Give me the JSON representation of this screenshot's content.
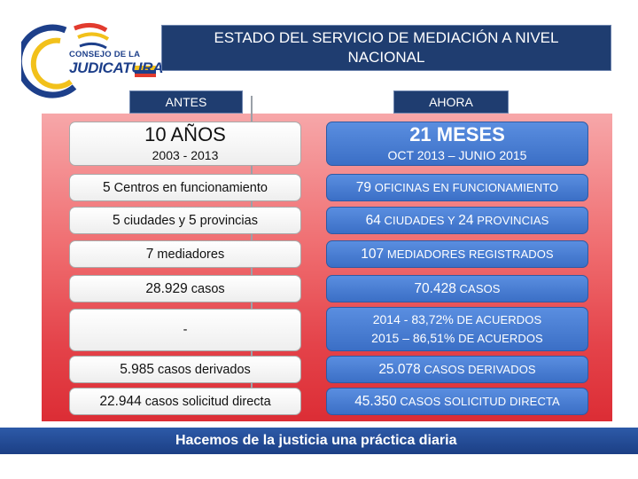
{
  "header": {
    "logo_line1": "CONSEJO DE LA",
    "logo_line2": "JUDICATURA",
    "title": "ESTADO DEL SERVICIO DE MEDIACIÓN A NIVEL NACIONAL"
  },
  "columns": {
    "left_label": "ANTES",
    "right_label": "AHORA"
  },
  "rows": {
    "r0": {
      "left_big": "10 AÑOS",
      "left_sub": "2003 - 2013",
      "right_big": "21 MESES",
      "right_sub": "OCT 2013 – JUNIO 2015"
    },
    "r1": {
      "left_num": "5",
      "left_text": " Centros en funcionamiento",
      "right_num": "79",
      "right_text": " OFICINAS EN FUNCIONAMIENTO"
    },
    "r2": {
      "left_num1": "5",
      "left_text1": " ciudades y ",
      "left_num2": "5",
      "left_text2": " provincias",
      "right_num1": "64",
      "right_text1": " CIUDADES Y ",
      "right_num2": "24",
      "right_text2": " PROVINCIAS"
    },
    "r3": {
      "left_num": "7",
      "left_text": " mediadores",
      "right_num": "107",
      "right_text": " MEDIADORES REGISTRADOS"
    },
    "r4": {
      "left_num": "28.929",
      "left_text": " casos",
      "right_num": "70.428",
      "right_text": " CASOS"
    },
    "r5": {
      "left_text": "-",
      "right_line1_num": "2014 - 83,72%",
      "right_line1_text": " DE ACUERDOS",
      "right_line2_num": "2015 – 86,51%",
      "right_line2_text": " DE ACUERDOS"
    },
    "r6": {
      "left_num": "5.985",
      "left_text": " casos derivados",
      "right_num": "25.078",
      "right_text": " CASOS DERIVADOS"
    },
    "r7": {
      "left_num": "22.944",
      "left_text": " casos  solicitud directa",
      "right_num": "45.350",
      "right_text": " CASOS SOLICITUD DIRECTA"
    }
  },
  "footer": {
    "slogan": "Hacemos de la justicia una práctica diaria"
  },
  "colors": {
    "navy": "#1f3d70",
    "blue_cell": "#3b6fc6",
    "red_panel": "#e4434a"
  }
}
